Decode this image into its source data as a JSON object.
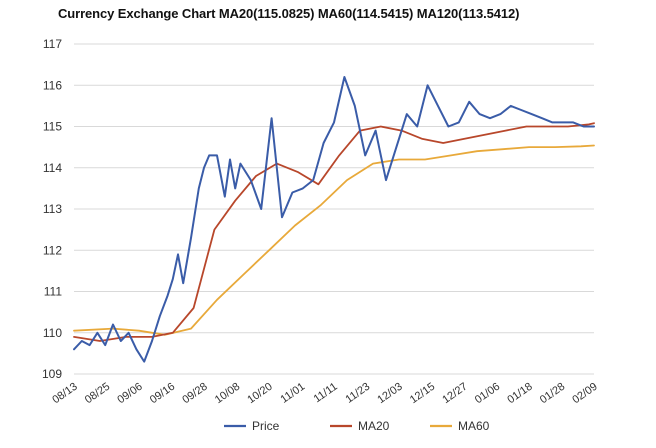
{
  "chart_data": {
    "type": "line",
    "title": "Currency Exchange Chart MA20(115.0825) MA60(114.5415) MA120(113.5412)",
    "xlabel": "",
    "ylabel": "",
    "ylim": [
      109,
      117
    ],
    "yticks": [
      "109",
      "110",
      "111",
      "112",
      "113",
      "114",
      "115",
      "116",
      "117"
    ],
    "xticks": [
      "08/13",
      "08/25",
      "09/06",
      "09/16",
      "09/28",
      "10/08",
      "10/20",
      "11/01",
      "11/11",
      "11/23",
      "12/03",
      "12/15",
      "12/27",
      "01/06",
      "01/18",
      "01/28",
      "02/09"
    ],
    "grid": true,
    "legend_position": "bottom",
    "colors": {
      "Price": "#3a5ca8",
      "MA20": "#b8472b",
      "MA60": "#e8a93a"
    },
    "series": [
      {
        "name": "Price",
        "x": [
          0,
          3,
          6,
          9,
          12,
          15,
          18,
          21,
          24,
          27,
          30,
          33,
          36,
          38,
          40,
          42,
          45,
          48,
          50,
          52,
          55,
          58,
          60,
          62,
          64,
          66,
          68,
          72,
          76,
          80,
          84,
          88,
          92,
          96,
          100,
          104,
          108,
          112,
          116,
          120,
          124,
          128,
          132,
          136,
          140,
          144,
          148,
          152,
          156,
          160,
          164,
          168,
          172,
          176,
          180,
          184,
          188,
          192,
          196,
          200
        ],
        "values": [
          109.6,
          109.8,
          109.7,
          110.0,
          109.7,
          110.2,
          109.8,
          110.0,
          109.6,
          109.3,
          109.8,
          110.4,
          110.9,
          111.3,
          111.9,
          111.2,
          112.3,
          113.5,
          114.0,
          114.3,
          114.3,
          113.3,
          114.2,
          113.5,
          114.1,
          113.9,
          113.7,
          113.0,
          115.2,
          112.8,
          113.4,
          113.5,
          113.7,
          114.6,
          115.1,
          116.2,
          115.5,
          114.3,
          114.9,
          113.7,
          114.5,
          115.3,
          115.0,
          116.0,
          115.5,
          115.0,
          115.1,
          115.6,
          115.3,
          115.2,
          115.3,
          115.5,
          115.4,
          115.3,
          115.2,
          115.1,
          115.1,
          115.1,
          115.0,
          115.0
        ]
      },
      {
        "name": "MA20",
        "x": [
          0,
          10,
          20,
          30,
          38,
          46,
          54,
          62,
          70,
          78,
          86,
          94,
          102,
          110,
          118,
          126,
          134,
          142,
          150,
          158,
          166,
          174,
          182,
          190,
          198,
          200
        ],
        "values": [
          109.9,
          109.8,
          109.9,
          109.9,
          110.0,
          110.6,
          112.5,
          113.2,
          113.8,
          114.1,
          113.9,
          113.6,
          114.3,
          114.9,
          115.0,
          114.9,
          114.7,
          114.6,
          114.7,
          114.8,
          114.9,
          115.0,
          115.0,
          115.0,
          115.05,
          115.08
        ]
      },
      {
        "name": "MA60",
        "x": [
          0,
          15,
          25,
          35,
          45,
          55,
          65,
          75,
          85,
          95,
          105,
          115,
          125,
          135,
          145,
          155,
          165,
          175,
          185,
          195,
          200
        ],
        "values": [
          110.05,
          110.1,
          110.05,
          109.95,
          110.1,
          110.8,
          111.4,
          112.0,
          112.6,
          113.1,
          113.7,
          114.1,
          114.2,
          114.2,
          114.3,
          114.4,
          114.45,
          114.5,
          114.5,
          114.52,
          114.54
        ]
      }
    ]
  }
}
